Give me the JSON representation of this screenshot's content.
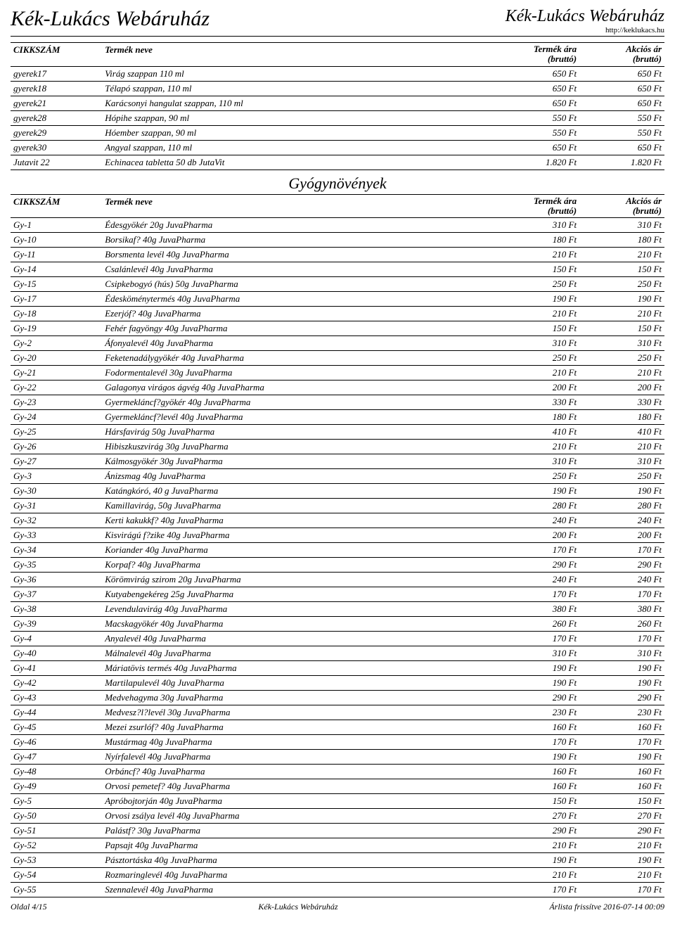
{
  "header": {
    "title_left": "Kék-Lukács Webáruház",
    "title_right": "Kék-Lukács Webáruház",
    "subtitle_right": "http://keklukacs.hu"
  },
  "columns": {
    "sku": "CIKKSZÁM",
    "name": "Termék neve",
    "price_line1": "Termék ára",
    "price_line2": "(bruttó)",
    "sale_line1": "Akciós ár",
    "sale_line2": "(bruttó)"
  },
  "section_title": "Gyógynövények",
  "table1_rows": [
    {
      "sku": "gyerek17",
      "name": "Virág szappan 110 ml",
      "price": "650 Ft",
      "sale": "650 Ft"
    },
    {
      "sku": "gyerek18",
      "name": "Télapó szappan, 110 ml",
      "price": "650 Ft",
      "sale": "650 Ft"
    },
    {
      "sku": "gyerek21",
      "name": "Karácsonyi hangulat szappan, 110 ml",
      "price": "650 Ft",
      "sale": "650 Ft"
    },
    {
      "sku": "gyerek28",
      "name": "Hópihe szappan, 90 ml",
      "price": "550 Ft",
      "sale": "550 Ft"
    },
    {
      "sku": "gyerek29",
      "name": "Hóember szappan, 90 ml",
      "price": "550 Ft",
      "sale": "550 Ft"
    },
    {
      "sku": "gyerek30",
      "name": "Angyal szappan, 110 ml",
      "price": "650 Ft",
      "sale": "650 Ft"
    },
    {
      "sku": "Jutavit 22",
      "name": "Echinacea tabletta 50 db JutaVit",
      "price": "1.820 Ft",
      "sale": "1.820 Ft"
    }
  ],
  "table2_rows": [
    {
      "sku": "Gy-1",
      "name": "Édesgyökér 20g JuvaPharma",
      "price": "310 Ft",
      "sale": "310 Ft"
    },
    {
      "sku": "Gy-10",
      "name": "Borsikaf? 40g JuvaPharma",
      "price": "180 Ft",
      "sale": "180 Ft"
    },
    {
      "sku": "Gy-11",
      "name": "Borsmenta levél 40g JuvaPharma",
      "price": "210 Ft",
      "sale": "210 Ft"
    },
    {
      "sku": "Gy-14",
      "name": "Csalánlevél 40g JuvaPharma",
      "price": "150 Ft",
      "sale": "150 Ft"
    },
    {
      "sku": "Gy-15",
      "name": "Csipkebogyó (hús) 50g JuvaPharma",
      "price": "250 Ft",
      "sale": "250 Ft"
    },
    {
      "sku": "Gy-17",
      "name": "Édesköménytermés 40g JuvaPharma",
      "price": "190 Ft",
      "sale": "190 Ft"
    },
    {
      "sku": "Gy-18",
      "name": "Ezerjóf? 40g JuvaPharma",
      "price": "210 Ft",
      "sale": "210 Ft"
    },
    {
      "sku": "Gy-19",
      "name": "Fehér fagyöngy 40g JuvaPharma",
      "price": "150 Ft",
      "sale": "150 Ft"
    },
    {
      "sku": "Gy-2",
      "name": "Áfonyalevél 40g JuvaPharma",
      "price": "310 Ft",
      "sale": "310 Ft"
    },
    {
      "sku": "Gy-20",
      "name": "Feketenadálygyökér 40g JuvaPharma",
      "price": "250 Ft",
      "sale": "250 Ft"
    },
    {
      "sku": "Gy-21",
      "name": "Fodormentalevél 30g JuvaPharma",
      "price": "210 Ft",
      "sale": "210 Ft"
    },
    {
      "sku": "Gy-22",
      "name": "Galagonya virágos ágvég 40g JuvaPharma",
      "price": "200 Ft",
      "sale": "200 Ft"
    },
    {
      "sku": "Gy-23",
      "name": "Gyermekláncf?gyökér 40g JuvaPharma",
      "price": "330 Ft",
      "sale": "330 Ft"
    },
    {
      "sku": "Gy-24",
      "name": "Gyermekláncf?levél 40g JuvaPharma",
      "price": "180 Ft",
      "sale": "180 Ft"
    },
    {
      "sku": "Gy-25",
      "name": "Hársfavirág 50g JuvaPharma",
      "price": "410 Ft",
      "sale": "410 Ft"
    },
    {
      "sku": "Gy-26",
      "name": "Hibiszkuszvirág 30g JuvaPharma",
      "price": "210 Ft",
      "sale": "210 Ft"
    },
    {
      "sku": "Gy-27",
      "name": "Kálmosgyökér 30g JuvaPharma",
      "price": "310 Ft",
      "sale": "310 Ft"
    },
    {
      "sku": "Gy-3",
      "name": "Ánizsmag 40g JuvaPharma",
      "price": "250 Ft",
      "sale": "250 Ft"
    },
    {
      "sku": "Gy-30",
      "name": "Katángkóró, 40 g JuvaPharma",
      "price": "190 Ft",
      "sale": "190 Ft"
    },
    {
      "sku": "Gy-31",
      "name": "Kamillavirág, 50g JuvaPharma",
      "price": "280 Ft",
      "sale": "280 Ft"
    },
    {
      "sku": "Gy-32",
      "name": "Kerti kakukkf? 40g JuvaPharma",
      "price": "240 Ft",
      "sale": "240 Ft"
    },
    {
      "sku": "Gy-33",
      "name": "Kisvirágú f?zike 40g JuvaPharma",
      "price": "200 Ft",
      "sale": "200 Ft"
    },
    {
      "sku": "Gy-34",
      "name": "Koriander 40g JuvaPharma",
      "price": "170 Ft",
      "sale": "170 Ft"
    },
    {
      "sku": "Gy-35",
      "name": "Korpaf? 40g JuvaPharma",
      "price": "290 Ft",
      "sale": "290 Ft"
    },
    {
      "sku": "Gy-36",
      "name": "Körömvirág szirom 20g JuvaPharma",
      "price": "240 Ft",
      "sale": "240 Ft"
    },
    {
      "sku": "Gy-37",
      "name": "Kutyabengekéreg 25g JuvaPharma",
      "price": "170 Ft",
      "sale": "170 Ft"
    },
    {
      "sku": "Gy-38",
      "name": "Levendulavirág 40g JuvaPharma",
      "price": "380 Ft",
      "sale": "380 Ft"
    },
    {
      "sku": "Gy-39",
      "name": "Macskagyökér 40g JuvaPharma",
      "price": "260 Ft",
      "sale": "260 Ft"
    },
    {
      "sku": "Gy-4",
      "name": "Anyalevél 40g JuvaPharma",
      "price": "170 Ft",
      "sale": "170 Ft"
    },
    {
      "sku": "Gy-40",
      "name": "Málnalevél 40g JuvaPharma",
      "price": "310 Ft",
      "sale": "310 Ft"
    },
    {
      "sku": "Gy-41",
      "name": "Máriatövis termés 40g JuvaPharma",
      "price": "190 Ft",
      "sale": "190 Ft"
    },
    {
      "sku": "Gy-42",
      "name": "Martilapulevél 40g JuvaPharma",
      "price": "190 Ft",
      "sale": "190 Ft"
    },
    {
      "sku": "Gy-43",
      "name": "Medvehagyma 30g JuvaPharma",
      "price": "290 Ft",
      "sale": "290 Ft"
    },
    {
      "sku": "Gy-44",
      "name": "Medvesz?l?levél 30g JuvaPharma",
      "price": "230 Ft",
      "sale": "230 Ft"
    },
    {
      "sku": "Gy-45",
      "name": "Mezei zsurlóf? 40g JuvaPharma",
      "price": "160 Ft",
      "sale": "160 Ft"
    },
    {
      "sku": "Gy-46",
      "name": "Mustármag 40g JuvaPharma",
      "price": "170 Ft",
      "sale": "170 Ft"
    },
    {
      "sku": "Gy-47",
      "name": "Nyírfalevél 40g JuvaPharma",
      "price": "190 Ft",
      "sale": "190 Ft"
    },
    {
      "sku": "Gy-48",
      "name": "Orbáncf? 40g JuvaPharma",
      "price": "160 Ft",
      "sale": "160 Ft"
    },
    {
      "sku": "Gy-49",
      "name": "Orvosi pemetef? 40g JuvaPharma",
      "price": "160 Ft",
      "sale": "160 Ft"
    },
    {
      "sku": "Gy-5",
      "name": "Apróbojtorján 40g JuvaPharma",
      "price": "150 Ft",
      "sale": "150 Ft"
    },
    {
      "sku": "Gy-50",
      "name": "Orvosi zsálya levél 40g JuvaPharma",
      "price": "270 Ft",
      "sale": "270 Ft"
    },
    {
      "sku": "Gy-51",
      "name": "Palástf? 30g JuvaPharma",
      "price": "290 Ft",
      "sale": "290 Ft"
    },
    {
      "sku": "Gy-52",
      "name": "Papsajt 40g JuvaPharma",
      "price": "210 Ft",
      "sale": "210 Ft"
    },
    {
      "sku": "Gy-53",
      "name": "Pásztortáska 40g JuvaPharma",
      "price": "190 Ft",
      "sale": "190 Ft"
    },
    {
      "sku": "Gy-54",
      "name": "Rozmaringlevél 40g JuvaPharma",
      "price": "210 Ft",
      "sale": "210 Ft"
    },
    {
      "sku": "Gy-55",
      "name": "Szennalevél 40g JuvaPharma",
      "price": "170 Ft",
      "sale": "170 Ft"
    }
  ],
  "footer": {
    "left": "Oldal 4/15",
    "center": "Kék-Lukács Webáruház",
    "right": "Árlista frissítve 2016-07-14 00:09"
  }
}
